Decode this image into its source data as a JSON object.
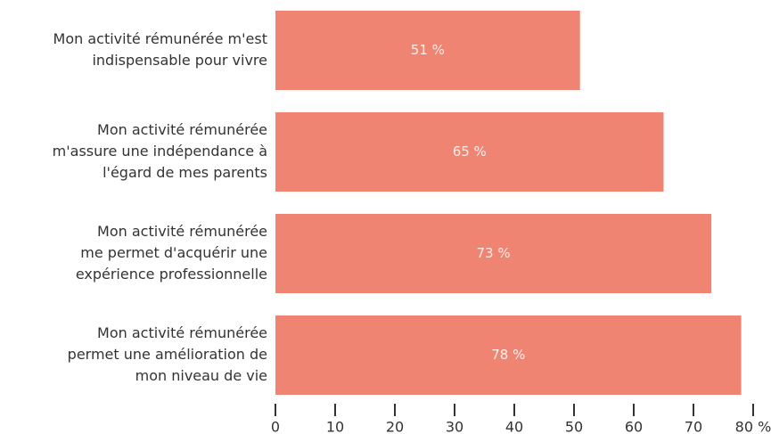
{
  "chart_data": {
    "type": "barh",
    "categories": [
      [
        "Mon activité rémunérée m'est",
        "indispensable pour vivre"
      ],
      [
        "Mon activité rémunérée",
        "m'assure une indépendance à",
        "l'égard de mes parents"
      ],
      [
        "Mon activité rémunérée",
        "me permet d'acquérir une",
        "expérience professionnelle"
      ],
      [
        "Mon activité rémunérée",
        "permet une amélioration de",
        "mon niveau de vie"
      ]
    ],
    "values": [
      51,
      65,
      73,
      78
    ],
    "value_labels": [
      "51 %",
      "65 %",
      "73 %",
      "78 %"
    ],
    "color": "#f08473",
    "xlim": [
      0,
      80
    ],
    "xticks": [
      0,
      10,
      20,
      30,
      40,
      50,
      60,
      70,
      {
        "value": 80,
        "label": "80 %"
      }
    ]
  }
}
